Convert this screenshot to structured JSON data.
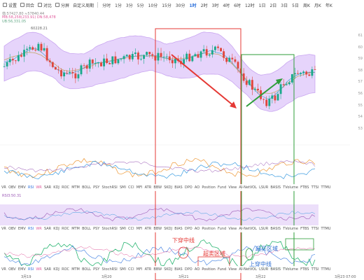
{
  "toolbar": {
    "tools": [
      "设置",
      "回合",
      "对比",
      "分屏",
      "自定义周期"
    ],
    "intervals": [
      "分时",
      "1分",
      "3分",
      "5分",
      "10分",
      "15分",
      "30分",
      "1时",
      "2时",
      "3时",
      "4时",
      "6时",
      "12时",
      "1日",
      "2日",
      "3日",
      "5日",
      "周K",
      "月K",
      "年K"
    ],
    "active_interval": "1时"
  },
  "price_lines": {
    "line1": "值:57427.80  ≈57840.44",
    "line2": "MB:58,258(233.91)  DN:58,478",
    "line3": "UB:56,331.05"
  },
  "price_tags": {
    "high": "60228.21"
  },
  "price_axis": [
    "61",
    "60",
    "59",
    "58",
    "57",
    "56",
    "55",
    "54",
    "53"
  ],
  "osc_label": "RSI3:50.31",
  "indicator_list": [
    "VR",
    "OBV",
    "EMV",
    "RSI",
    "WR",
    "SAR",
    "KDJ",
    "ROC",
    "MTM",
    "BOLL",
    "PSY",
    "StochRSI",
    "SMI",
    "CCI",
    "MFI",
    "ATR",
    "BBW",
    "SKDJ",
    "BIAS",
    "DPO",
    "AO",
    "Position",
    "Fund",
    "View",
    "AI-NetVOL",
    "LSUR",
    "BASIS",
    "TVolume",
    "FTBS",
    "TTSI",
    "TTMU"
  ],
  "active_indicator": "RSI",
  "dates": [
    "3月19",
    "3月20",
    "3月21",
    "3月22",
    "3月23 07:00"
  ],
  "annotations": {
    "down_trend": "下穿中线",
    "overbought": "超买区域",
    "oversold": "超卖区域",
    "up_trend": "上穿中线"
  },
  "colors": {
    "up": "#1aa98b",
    "down": "#e0463d",
    "band": "#c9a6f0",
    "red_box": "#e53935",
    "green_box": "#2e9e3a",
    "arrow_red": "#e53935",
    "arrow_green": "#2e9e3a"
  },
  "icons": [
    "settings-icon",
    "tile-icon",
    "compare-icon",
    "split-screen-icon"
  ]
}
